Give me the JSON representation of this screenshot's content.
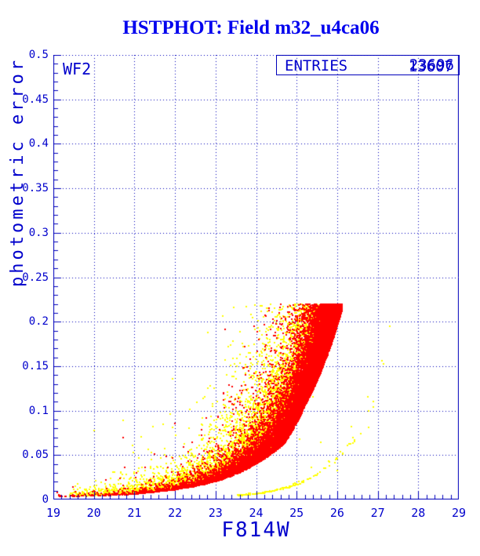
{
  "title": "HSTPHOT: Field m32_u4ca06",
  "panel_label": "WF2",
  "legend": {
    "label": "ENTRIES",
    "values": [
      "23696",
      "13607"
    ]
  },
  "axes": {
    "xlabel": "F814W",
    "ylabel": "photometric error",
    "xmin": 19,
    "xmax": 29,
    "ymin": 0,
    "ymax": 0.5,
    "x_major_step": 1,
    "x_minor_step": 0.2,
    "y_major_step": 0.05,
    "y_minor_step": 0.01,
    "x_tick_labels": [
      "19",
      "20",
      "21",
      "22",
      "23",
      "24",
      "25",
      "26",
      "27",
      "28",
      "29"
    ],
    "y_tick_labels": [
      "0",
      "0.05",
      "0.1",
      "0.15",
      "0.2",
      "0.25",
      "0.3",
      "0.35",
      "0.4",
      "0.45",
      "0.5"
    ],
    "grid": "dotted, at every major tick"
  },
  "colors": {
    "frame": "#0000bb",
    "grid": "#0000bb",
    "text": "#0000cc",
    "title": "#0000ee",
    "series_red": "#ff0000",
    "series_yellow": "#ffff00",
    "background": "#ffffff"
  },
  "chart_data": {
    "type": "scatter",
    "title": "HSTPHOT: Field m32_u4ca06",
    "xlabel": "F814W",
    "ylabel": "photometric error",
    "xlim": [
      19,
      29
    ],
    "ylim": [
      0,
      0.5
    ],
    "legend_position": "top-right box inside frame",
    "series": [
      {
        "name": "red-detections",
        "color": "#ff0000",
        "entries": 23696,
        "render_points": 16000,
        "description": "dense error-vs-magnitude sequence; tight lower envelope with scattered tail above; hard cap at error 0.22 and magnitude cutoff 26.12",
        "lower_envelope": [
          [
            19.0,
            0.0028
          ],
          [
            20,
            0.004
          ],
          [
            21,
            0.006
          ],
          [
            22,
            0.011
          ],
          [
            23,
            0.02
          ],
          [
            24,
            0.04
          ],
          [
            24.7,
            0.063
          ],
          [
            25.2,
            0.105
          ],
          [
            25.7,
            0.155
          ],
          [
            26.12,
            0.213
          ]
        ],
        "mag_range": [
          19.1,
          26.12
        ],
        "mag_density_k": 0.95,
        "err_cap": 0.22,
        "spread": {
          "tight_frac": 0.8,
          "tight_mean": 0.28,
          "tail_mean": 1.0
        },
        "strays": 8
      },
      {
        "name": "yellow-detections",
        "color": "#ffff00",
        "entries": 13607,
        "render_points": 9300,
        "description": "broad cloud of larger errors above the red sequence, densest 21.5-25.5, capped at error 0.22",
        "lower_envelope": [
          [
            19.0,
            0.0028
          ],
          [
            20,
            0.004
          ],
          [
            21,
            0.006
          ],
          [
            22,
            0.011
          ],
          [
            23,
            0.02
          ],
          [
            24,
            0.04
          ],
          [
            24.7,
            0.063
          ],
          [
            25.2,
            0.105
          ],
          [
            25.7,
            0.155
          ],
          [
            26.12,
            0.213
          ]
        ],
        "mag_range": [
          19.4,
          26.3
        ],
        "mag_density_k": 0.58,
        "err_cap": 0.22,
        "spread": {
          "offset": 1.1,
          "tight_frac": 0.7,
          "tight_mean": 0.5,
          "tail_mean": 1.4
        },
        "strays": 22
      },
      {
        "name": "yellow-faint-arc",
        "color": "#ffff00",
        "render_points": 185,
        "description": "thin secondary error curve at lower right, from about (23.6, 0.005) rising to (27.4, 0.21)",
        "curve": [
          [
            23.55,
            0.0045
          ],
          [
            24,
            0.0065
          ],
          [
            24.5,
            0.0105
          ],
          [
            25,
            0.017
          ],
          [
            25.5,
            0.029
          ],
          [
            26,
            0.048
          ],
          [
            26.5,
            0.072
          ],
          [
            26.9,
            0.105
          ],
          [
            27.15,
            0.148
          ],
          [
            27.38,
            0.205
          ]
        ],
        "mag_range": [
          23.55,
          27.38
        ]
      }
    ]
  }
}
